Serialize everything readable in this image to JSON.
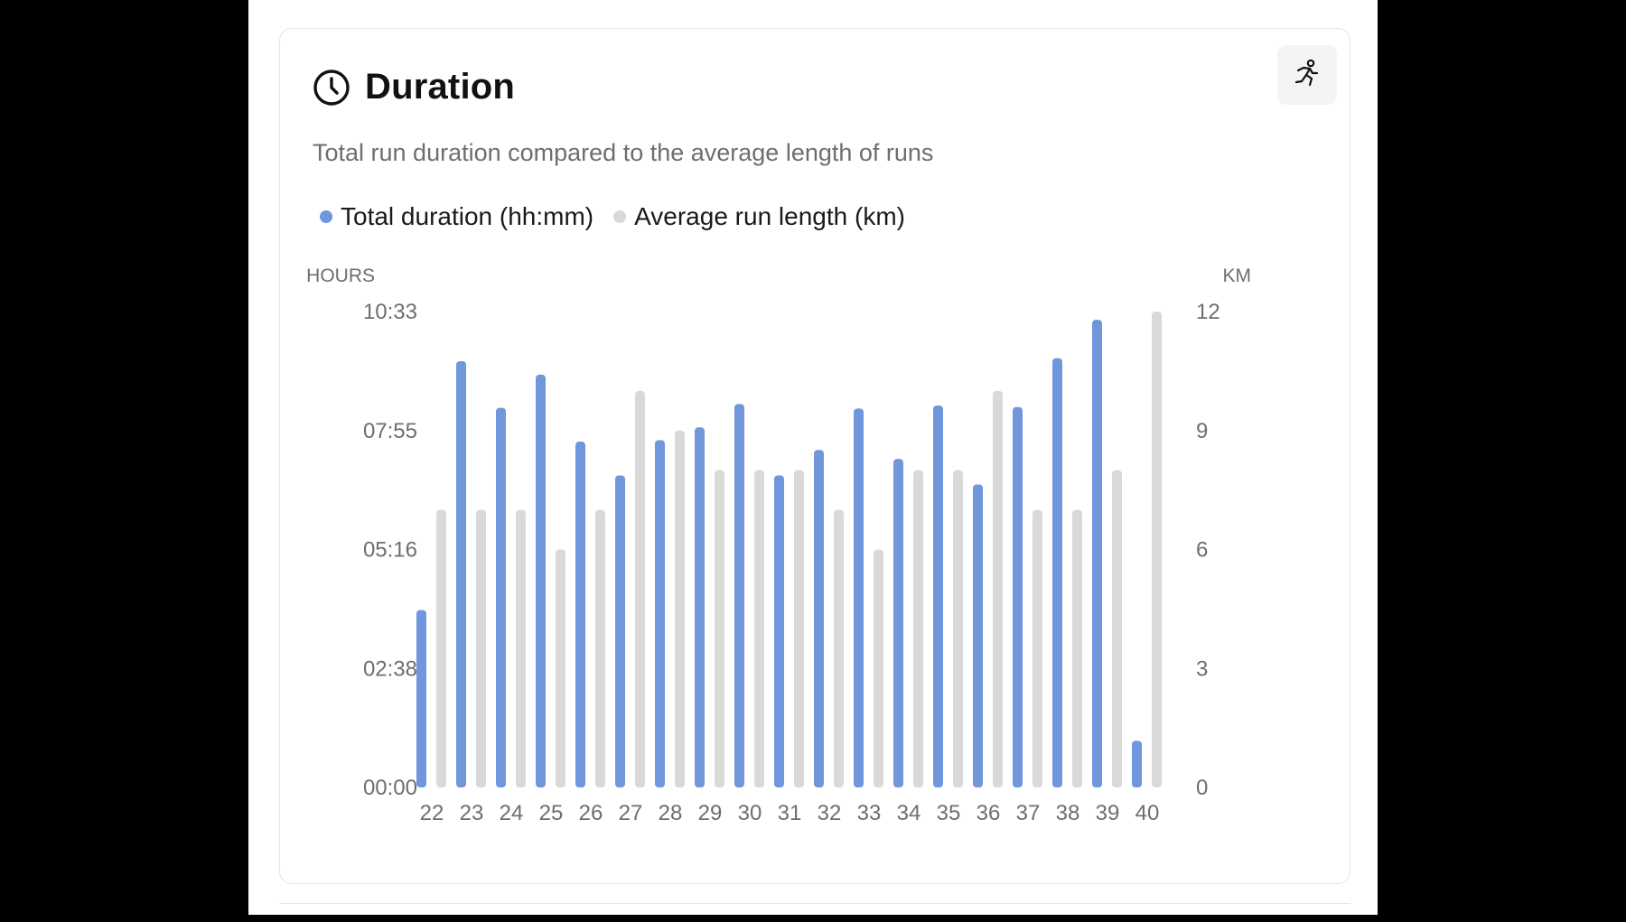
{
  "header": {
    "title": "Duration",
    "subtitle": "Total run duration compared to the average length of runs",
    "clock_icon": "clock-icon",
    "action_icon": "running-person-icon"
  },
  "colors": {
    "duration": "#7096db",
    "avg_length": "#d9d9d9"
  },
  "chart_data": {
    "type": "bar",
    "title": "Duration",
    "subtitle": "Total run duration compared to the average length of runs",
    "legend": [
      "Total duration (hh:mm)",
      "Average run length (km)"
    ],
    "legend_position": "top-left",
    "grid": false,
    "categories": [
      "22",
      "23",
      "24",
      "25",
      "26",
      "27",
      "28",
      "29",
      "30",
      "31",
      "32",
      "33",
      "34",
      "35",
      "36",
      "37",
      "38",
      "39",
      "40"
    ],
    "y_left": {
      "label": "HOURS",
      "ticks": [
        "10:33",
        "07:55",
        "05:16",
        "02:38",
        "00:00"
      ],
      "range_minutes": [
        0,
        633
      ]
    },
    "y_right": {
      "label": "KM",
      "ticks": [
        "12",
        "9",
        "6",
        "3",
        "0"
      ],
      "range": [
        0,
        12
      ]
    },
    "series": [
      {
        "name": "Total duration (hh:mm)",
        "axis": "left",
        "unit": "minutes",
        "values": [
          236,
          567,
          505,
          549,
          460,
          415,
          462,
          479,
          510,
          415,
          449,
          504,
          437,
          508,
          403,
          506,
          571,
          622,
          62
        ]
      },
      {
        "name": "Average run length (km)",
        "axis": "right",
        "unit": "km",
        "values": [
          7,
          7,
          7,
          6,
          7,
          10,
          9,
          8,
          8,
          8,
          7,
          6,
          8,
          8,
          10,
          7,
          7,
          8,
          12
        ]
      }
    ]
  }
}
